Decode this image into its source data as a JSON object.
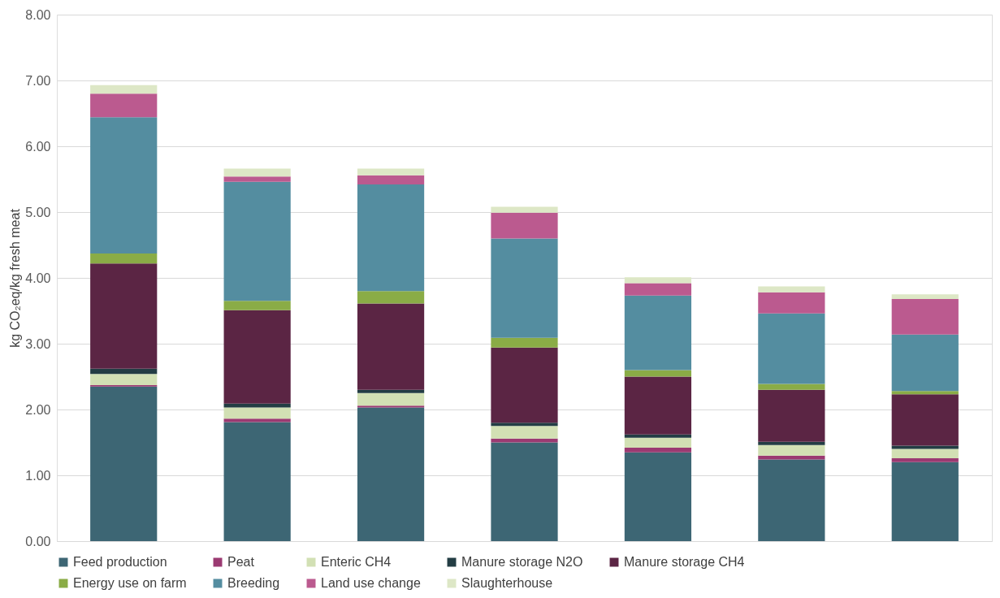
{
  "chart_data": {
    "type": "bar",
    "stacked": true,
    "ylabel": "kg CO₂eq/kg fresh meat",
    "categories": [
      null,
      null,
      null,
      null,
      null,
      null,
      null
    ],
    "ylim": [
      0,
      8
    ],
    "yticks": [
      {
        "value": 0,
        "label": "0.00"
      },
      {
        "value": 1,
        "label": "1.00"
      },
      {
        "value": 2,
        "label": "2.00"
      },
      {
        "value": 3,
        "label": "3.00"
      },
      {
        "value": 4,
        "label": "4.00"
      },
      {
        "value": 5,
        "label": "5.00"
      },
      {
        "value": 6,
        "label": "6.00"
      },
      {
        "value": 7,
        "label": "7.00"
      },
      {
        "value": 8,
        "label": "8.00"
      }
    ],
    "grid": "y",
    "legend": "bottom",
    "tick_labels": "y",
    "series": [
      {
        "name": "Feed production",
        "color": "#3d6674",
        "values": [
          2.35,
          1.81,
          2.03,
          1.5,
          1.35,
          1.24,
          1.2
        ]
      },
      {
        "name": "Peat",
        "color": "#9b3a72",
        "values": [
          0.02,
          0.05,
          0.03,
          0.06,
          0.07,
          0.06,
          0.06
        ]
      },
      {
        "name": "Enteric CH4",
        "color": "#d2e0b4",
        "values": [
          0.17,
          0.17,
          0.19,
          0.19,
          0.15,
          0.16,
          0.14
        ]
      },
      {
        "name": "Manure storage N2O",
        "color": "#233d44",
        "values": [
          0.08,
          0.06,
          0.05,
          0.05,
          0.05,
          0.05,
          0.05
        ]
      },
      {
        "name": "Manure storage CH4",
        "color": "#5b2544",
        "values": [
          1.6,
          1.42,
          1.31,
          1.14,
          0.88,
          0.79,
          0.78
        ]
      },
      {
        "name": "Energy use on farm",
        "color": "#8aac46",
        "values": [
          0.15,
          0.14,
          0.19,
          0.15,
          0.1,
          0.09,
          0.05
        ]
      },
      {
        "name": "Breeding",
        "color": "#548da0",
        "values": [
          2.07,
          1.81,
          1.62,
          1.51,
          1.13,
          1.07,
          0.86
        ]
      },
      {
        "name": "Land use change",
        "color": "#bb5a8f",
        "values": [
          0.36,
          0.08,
          0.14,
          0.39,
          0.19,
          0.32,
          0.54
        ]
      },
      {
        "name": "Slaughterhouse",
        "color": "#dde7c6",
        "values": [
          0.13,
          0.12,
          0.1,
          0.09,
          0.09,
          0.09,
          0.07
        ]
      }
    ]
  }
}
